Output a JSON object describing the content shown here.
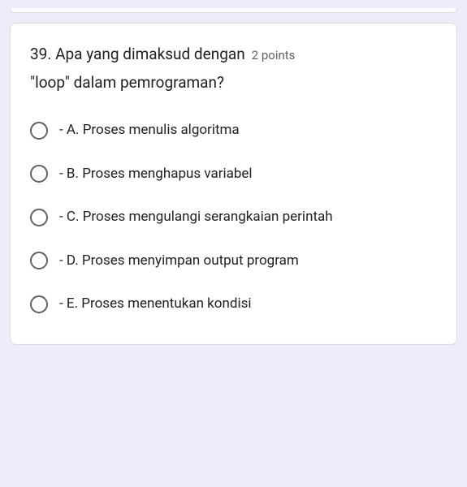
{
  "question": {
    "title_line1": "39. Apa yang dimaksud dengan",
    "title_line2": "\"loop\" dalam pemrograman?",
    "points_label": "2 points"
  },
  "options": [
    {
      "label": "- A. Proses menulis algoritma"
    },
    {
      "label": "- B. Proses menghapus variabel"
    },
    {
      "label": "- C. Proses mengulangi serangkaian perintah"
    },
    {
      "label": "- D. Proses menyimpan output program"
    },
    {
      "label": "- E. Proses menentukan kondisi"
    }
  ],
  "colors": {
    "page_bg": "#f0ebf8",
    "card_bg": "#ffffff",
    "card_border": "#dadce0",
    "text_primary": "#202124",
    "text_secondary": "#5f6368",
    "radio_border": "#5f6368"
  }
}
